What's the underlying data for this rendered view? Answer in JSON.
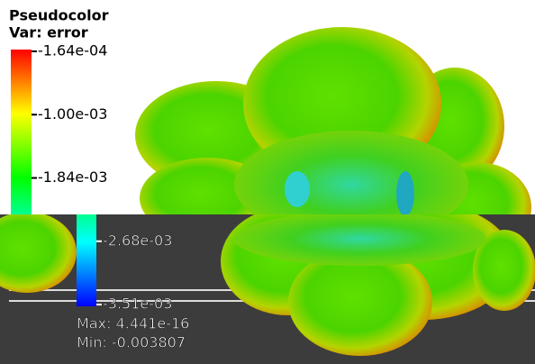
{
  "legend": {
    "title": "Pseudocolor",
    "variable": "Var: error",
    "ticks": [
      "-1.64e-04",
      "-1.00e-03",
      "-1.84e-03",
      "-2.68e-03",
      "-3.51e-03"
    ],
    "max": "Max: 4.441e-16",
    "min": "Min: -0.003807"
  }
}
